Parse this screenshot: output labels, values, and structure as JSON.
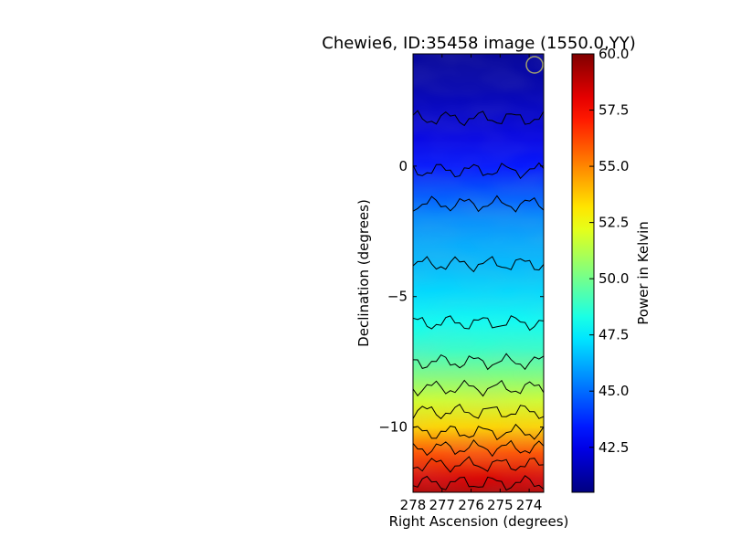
{
  "chart_data": {
    "type": "heatmap",
    "title": "Chewie6, ID:35458 image (1550.0,YY)",
    "xlabel": "Right Ascension (degrees)",
    "ylabel": "Declination (degrees)",
    "x_axis_reversed": true,
    "xlim": [
      278.0,
      273.5
    ],
    "ylim": [
      -12.5,
      4.3
    ],
    "x_ticks": [
      278,
      277,
      276,
      275,
      274
    ],
    "y_ticks": [
      0,
      -5,
      -10
    ],
    "x_tick_labels": [
      "278",
      "277",
      "276",
      "275",
      "274"
    ],
    "y_tick_labels": [
      "0",
      "−5",
      "−10"
    ],
    "colorbar": {
      "label": "Power in Kelvin",
      "colormap": "jet",
      "range": [
        40.5,
        60.0
      ],
      "ticks": [
        42.5,
        45.0,
        47.5,
        50.0,
        52.5,
        55.0,
        57.5,
        60.0
      ],
      "tick_labels": [
        "42.5",
        "45.0",
        "47.5",
        "50.0",
        "52.5",
        "55.0",
        "57.5",
        "60.0"
      ]
    },
    "mean_power_profile": {
      "declination": [
        4.3,
        3.0,
        2.0,
        1.0,
        0.0,
        -1.0,
        -2.0,
        -3.0,
        -4.0,
        -5.0,
        -6.0,
        -7.0,
        -8.0,
        -9.0,
        -10.0,
        -11.0,
        -12.0,
        -12.5
      ],
      "power": [
        41.0,
        41.4,
        41.9,
        42.5,
        43.3,
        44.5,
        45.6,
        46.2,
        46.6,
        47.2,
        48.0,
        48.8,
        50.2,
        51.8,
        53.5,
        56.0,
        58.3,
        59.0
      ]
    },
    "contours": "black contour lines",
    "beam_marker": "circle, top-right"
  }
}
